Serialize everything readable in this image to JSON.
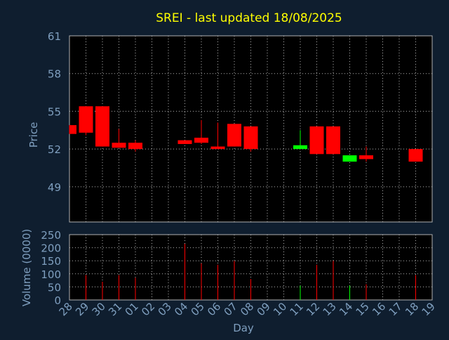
{
  "colors": {
    "background": "#0f1e2f",
    "plot_background": "#000000",
    "title": "#ffff00",
    "axis_text": "#7f9fbf",
    "grid": "#b0b0b0",
    "down": "#ff0000",
    "up": "#00ff00"
  },
  "chart_data": {
    "type": "candlestick",
    "title": "SREI - last updated 18/08/2025",
    "xlabel": "Day",
    "grid": true,
    "categories": [
      "28",
      "29",
      "30",
      "31",
      "01",
      "02",
      "03",
      "04",
      "05",
      "06",
      "07",
      "08",
      "09",
      "10",
      "11",
      "12",
      "13",
      "14",
      "15",
      "16",
      "17",
      "18",
      "19"
    ],
    "price_panel": {
      "ylabel": "Price",
      "ylim": [
        46.2,
        61
      ],
      "yticks": [
        49,
        52,
        55,
        58,
        61
      ],
      "candles": [
        {
          "day": "28",
          "open": 53.9,
          "close": 53.2,
          "high": 53.9,
          "low": 53.2
        },
        {
          "day": "29",
          "open": 55.4,
          "close": 53.3,
          "high": 55.4,
          "low": 53.1
        },
        {
          "day": "30",
          "open": 55.4,
          "close": 52.2,
          "high": 55.4,
          "low": 52.2
        },
        {
          "day": "31",
          "open": 52.5,
          "close": 52.1,
          "high": 53.6,
          "low": 52.1
        },
        {
          "day": "01",
          "open": 52.5,
          "close": 52.0,
          "high": 52.7,
          "low": 51.8
        },
        {
          "day": "04",
          "open": 52.7,
          "close": 52.4,
          "high": 52.7,
          "low": 52.4
        },
        {
          "day": "05",
          "open": 52.9,
          "close": 52.5,
          "high": 54.3,
          "low": 52.4
        },
        {
          "day": "06",
          "open": 52.2,
          "close": 52.0,
          "high": 54.1,
          "low": 52.0
        },
        {
          "day": "07",
          "open": 54.0,
          "close": 52.2,
          "high": 54.0,
          "low": 52.2
        },
        {
          "day": "08",
          "open": 53.8,
          "close": 52.0,
          "high": 53.8,
          "low": 51.8
        },
        {
          "day": "11",
          "open": 52.0,
          "close": 52.3,
          "high": 53.5,
          "low": 52.0
        },
        {
          "day": "12",
          "open": 53.8,
          "close": 51.6,
          "high": 53.8,
          "low": 51.6
        },
        {
          "day": "13",
          "open": 53.8,
          "close": 51.6,
          "high": 53.8,
          "low": 51.6
        },
        {
          "day": "14",
          "open": 51.0,
          "close": 51.5,
          "high": 51.5,
          "low": 51.0
        },
        {
          "day": "15",
          "open": 51.5,
          "close": 51.2,
          "high": 52.2,
          "low": 51.0
        },
        {
          "day": "18",
          "open": 52.0,
          "close": 51.0,
          "high": 52.0,
          "low": 51.0
        }
      ]
    },
    "volume_panel": {
      "ylabel": "Volume (0000)",
      "ylim": [
        0,
        250
      ],
      "yticks": [
        0,
        50,
        100,
        150,
        200,
        250
      ],
      "bars": [
        {
          "day": "29",
          "value": 95,
          "color": "down"
        },
        {
          "day": "30",
          "value": 70,
          "color": "down"
        },
        {
          "day": "31",
          "value": 95,
          "color": "down"
        },
        {
          "day": "01",
          "value": 85,
          "color": "down"
        },
        {
          "day": "04",
          "value": 215,
          "color": "down"
        },
        {
          "day": "05",
          "value": 140,
          "color": "down"
        },
        {
          "day": "06",
          "value": 135,
          "color": "down"
        },
        {
          "day": "07",
          "value": 150,
          "color": "down"
        },
        {
          "day": "08",
          "value": 80,
          "color": "down"
        },
        {
          "day": "11",
          "value": 55,
          "color": "up"
        },
        {
          "day": "12",
          "value": 135,
          "color": "down"
        },
        {
          "day": "13",
          "value": 150,
          "color": "down"
        },
        {
          "day": "14",
          "value": 55,
          "color": "up"
        },
        {
          "day": "15",
          "value": 60,
          "color": "down"
        },
        {
          "day": "18",
          "value": 95,
          "color": "down"
        }
      ]
    }
  }
}
